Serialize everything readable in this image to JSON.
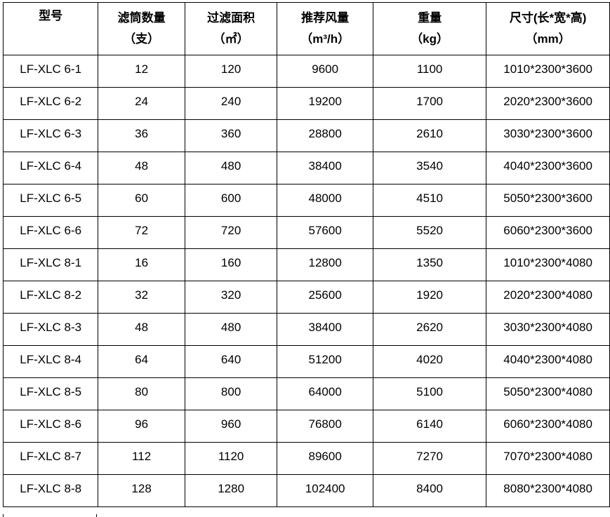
{
  "headers": [
    {
      "line1": "型号",
      "line2": ""
    },
    {
      "line1": "滤筒数量",
      "line2": "（支）"
    },
    {
      "line1": "过滤面积",
      "line2": "（㎡）"
    },
    {
      "line1": "推荐风量",
      "line2": "（m³/h）"
    },
    {
      "line1": "重量",
      "line2": "（kg）"
    },
    {
      "line1": "尺寸(长*宽*高)",
      "line2": "（mm）"
    }
  ],
  "rows": [
    [
      "LF-XLC 6-1",
      "12",
      "120",
      "9600",
      "1100",
      "1010*2300*3600"
    ],
    [
      "LF-XLC 6-2",
      "24",
      "240",
      "19200",
      "1700",
      "2020*2300*3600"
    ],
    [
      "LF-XLC 6-3",
      "36",
      "360",
      "28800",
      "2610",
      "3030*2300*3600"
    ],
    [
      "LF-XLC 6-4",
      "48",
      "480",
      "38400",
      "3540",
      "4040*2300*3600"
    ],
    [
      "LF-XLC 6-5",
      "60",
      "600",
      "48000",
      "4510",
      "5050*2300*3600"
    ],
    [
      "LF-XLC 6-6",
      "72",
      "720",
      "57600",
      "5520",
      "6060*2300*3600"
    ],
    [
      "LF-XLC 8-1",
      "16",
      "160",
      "12800",
      "1350",
      "1010*2300*4080"
    ],
    [
      "LF-XLC 8-2",
      "32",
      "320",
      "25600",
      "1920",
      "2020*2300*4080"
    ],
    [
      "LF-XLC 8-3",
      "48",
      "480",
      "38400",
      "2620",
      "3030*2300*4080"
    ],
    [
      "LF-XLC 8-4",
      "64",
      "640",
      "51200",
      "4020",
      "4040*2300*4080"
    ],
    [
      "LF-XLC 8-5",
      "80",
      "800",
      "64000",
      "5100",
      "5050*2300*4080"
    ],
    [
      "LF-XLC 8-6",
      "96",
      "960",
      "76800",
      "6140",
      "6060*2300*4080"
    ],
    [
      "LF-XLC 8-7",
      "112",
      "1120",
      "89600",
      "7270",
      "7070*2300*4080"
    ],
    [
      "LF-XLC 8-8",
      "128",
      "1280",
      "102400",
      "8400",
      "8080*2300*4080"
    ]
  ]
}
